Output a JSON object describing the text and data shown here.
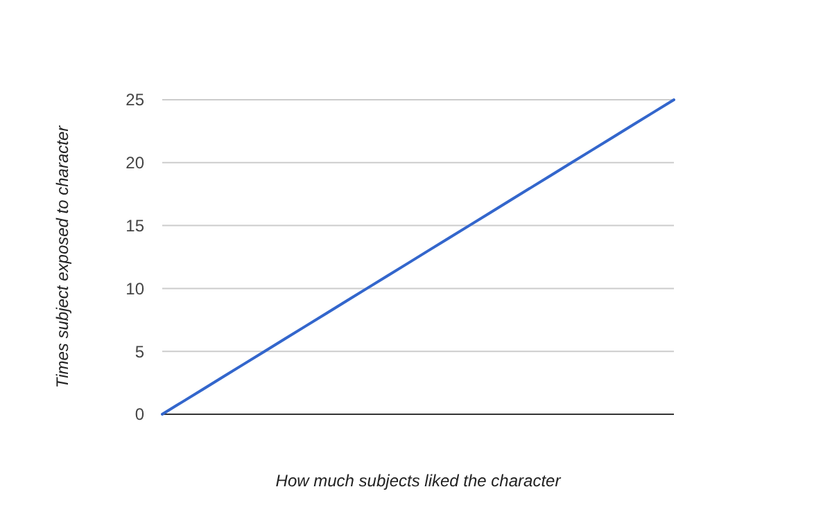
{
  "chart_data": {
    "type": "line",
    "xlabel": "How much subjects liked the character",
    "ylabel": "Times subject exposed to character",
    "categories": [
      null,
      null,
      null,
      null,
      null,
      null,
      null,
      null,
      null,
      null,
      null,
      null,
      null,
      null,
      null,
      null,
      null,
      null,
      null,
      null,
      null,
      null,
      null,
      null,
      null,
      null
    ],
    "series": [
      {
        "color": "#3366cc",
        "values": [
          0,
          1,
          2,
          3,
          4,
          5,
          6,
          7,
          8,
          9,
          10,
          11,
          12,
          13,
          14,
          15,
          16,
          17,
          18,
          19,
          20,
          21,
          22,
          23,
          24,
          25
        ]
      }
    ],
    "ylim": [
      0,
      25
    ],
    "yticks": [
      0,
      5,
      10,
      15,
      20,
      25
    ],
    "grid": "y",
    "marker": "none",
    "line_style": "solid"
  }
}
